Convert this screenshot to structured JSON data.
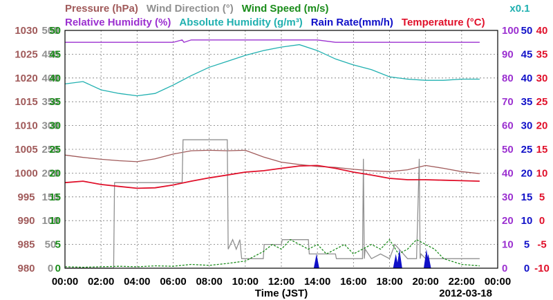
{
  "chart_data": {
    "type": "line",
    "date": "2012-03-18",
    "xlabel": "Time (JST)",
    "x_ticks": [
      "00:00",
      "02:00",
      "04:00",
      "06:00",
      "08:00",
      "10:00",
      "12:00",
      "14:00",
      "16:00",
      "18:00",
      "20:00",
      "22:00",
      "00:00"
    ],
    "xlim": [
      0,
      24
    ],
    "legend": {
      "row1": [
        {
          "text": "Pressure (hPa)",
          "color": "#a05a5a"
        },
        {
          "text": "Wind Direction (°)",
          "color": "#909090"
        },
        {
          "text": "Wind Speed (m/s)",
          "color": "#1a8c1a"
        }
      ],
      "row2": [
        {
          "text": "Relative Humidity (%)",
          "color": "#9b30d0"
        },
        {
          "text": "Absolute Humidity (g/m³)",
          "color": "#20b0b0"
        },
        {
          "text": "Rain Rate(mm/h)",
          "color": "#1010c8"
        },
        {
          "text": "Temperature (°C)",
          "color": "#e0102a"
        }
      ],
      "scale_note": {
        "text": "x0.1",
        "color": "#20b0b0"
      }
    },
    "axes": [
      {
        "name": "pressure",
        "color": "#a05a5a",
        "ylim": [
          980,
          1030
        ],
        "ticks": [
          "980",
          "985",
          "990",
          "995",
          "1000",
          "1005",
          "1010",
          "1015",
          "1020",
          "1025",
          "1030"
        ]
      },
      {
        "name": "wind_direction",
        "color": "#909090",
        "ylim": [
          0,
          500
        ],
        "ticks": [
          "0",
          "50",
          "100",
          "150",
          "200",
          "250",
          "300",
          "350",
          "400",
          "450",
          "500"
        ]
      },
      {
        "name": "wind_speed",
        "color": "#1a8c1a",
        "ylim": [
          0,
          50
        ],
        "ticks": [
          "0",
          "5",
          "10",
          "15",
          "20",
          "25",
          "30",
          "35",
          "40",
          "45",
          "50"
        ]
      },
      {
        "name": "humidity",
        "color": "#9b30d0",
        "ylim": [
          0,
          100
        ],
        "ticks": [
          "0",
          "10",
          "20",
          "30",
          "40",
          "50",
          "60",
          "70",
          "80",
          "90",
          "100"
        ]
      },
      {
        "name": "rain_rate",
        "color": "#1010c8",
        "ylim": [
          0,
          50
        ],
        "ticks": [
          "0",
          "5",
          "10",
          "15",
          "20",
          "25",
          "30",
          "35",
          "40",
          "45",
          "50"
        ]
      },
      {
        "name": "temperature",
        "color": "#e0102a",
        "ylim": [
          -10,
          40
        ],
        "ticks": [
          "-10",
          "-5",
          "0",
          "5",
          "10",
          "15",
          "20",
          "25",
          "30",
          "35",
          "40"
        ]
      }
    ],
    "series": [
      {
        "name": "Pressure (hPa)",
        "color": "#a05a5a",
        "axis": "pressure",
        "x": [
          0,
          1,
          2,
          3,
          4,
          5,
          6,
          7,
          8,
          9,
          10,
          11,
          12,
          13,
          14,
          15,
          16,
          17,
          18,
          19,
          20,
          21,
          22,
          23
        ],
        "y": [
          1003.8,
          1003.3,
          1002.9,
          1002.6,
          1002.4,
          1003.0,
          1004.0,
          1004.7,
          1004.8,
          1004.7,
          1004.8,
          1003.4,
          1002.3,
          1001.8,
          1001.4,
          1001.2,
          1000.8,
          1000.5,
          1000.3,
          1000.7,
          1001.6,
          1001.0,
          1000.3,
          999.9
        ]
      },
      {
        "name": "Wind Direction (°)",
        "color": "#909090",
        "axis": "wind_direction",
        "x": [
          0,
          2.7,
          2.75,
          6.5,
          6.55,
          9.0,
          9.05,
          9.3,
          9.5,
          9.7,
          9.8,
          10.0,
          11.0,
          11.05,
          12.0,
          12.05,
          13.5,
          13.55,
          15.0,
          15.05,
          16.5,
          16.55,
          16.6,
          16.65,
          17.0,
          17.5,
          18.0,
          18.3,
          19.0,
          19.5,
          19.65,
          19.7,
          19.75,
          20.0,
          21.0,
          23.0
        ],
        "y": [
          0,
          0,
          180,
          180,
          270,
          270,
          40,
          60,
          40,
          60,
          20,
          20,
          20,
          50,
          50,
          60,
          60,
          30,
          30,
          20,
          20,
          230,
          20,
          40,
          20,
          30,
          20,
          50,
          20,
          20,
          230,
          20,
          30,
          20,
          20,
          20
        ]
      },
      {
        "name": "Wind Speed (m/s)",
        "color": "#1a8c1a",
        "axis": "wind_speed",
        "x": [
          0,
          1,
          2,
          3,
          4,
          5,
          6,
          7,
          8,
          9,
          10,
          11,
          11.5,
          12,
          12.5,
          13,
          13.5,
          14,
          14.5,
          15,
          15.5,
          16,
          16.5,
          17,
          17.5,
          18,
          18.5,
          19,
          19.5,
          20,
          20.5,
          21,
          22,
          23
        ],
        "y": [
          0.3,
          0.2,
          0.3,
          0.4,
          0.3,
          0.5,
          0.4,
          0.8,
          0.6,
          1.0,
          1.5,
          3.5,
          5,
          4,
          6,
          5,
          4,
          5,
          3,
          4,
          5,
          3,
          4,
          5,
          4,
          6,
          3,
          4,
          6,
          5,
          4,
          2,
          0.8,
          0.5
        ]
      },
      {
        "name": "Relative Humidity (%)",
        "color": "#9b30d0",
        "axis": "humidity",
        "x": [
          0,
          3,
          5,
          6,
          6.5,
          6.6,
          7,
          12,
          14,
          15,
          16,
          18,
          19,
          20,
          23
        ],
        "y": [
          95,
          95,
          95,
          95,
          96,
          95,
          96,
          96,
          96,
          95,
          95,
          95,
          95,
          95,
          95
        ]
      },
      {
        "name": "Absolute Humidity (g/m³) x0.1",
        "color": "#20b0b0",
        "axis": "humidity",
        "x": [
          0,
          1,
          2,
          3,
          4,
          5,
          6,
          7,
          8,
          9,
          10,
          11,
          12,
          13,
          14,
          15,
          16,
          17,
          18,
          19,
          20,
          21,
          22,
          23
        ],
        "y": [
          77.5,
          78.5,
          75,
          73.5,
          72.5,
          73.5,
          77,
          81,
          84.5,
          87,
          89.5,
          91.5,
          93,
          94,
          91.5,
          88,
          85.5,
          83.5,
          80.5,
          79.5,
          79,
          79,
          79.5,
          79.5
        ]
      },
      {
        "name": "Rain Rate(mm/h)",
        "color": "#1010c8",
        "axis": "rain_rate",
        "x": [
          13.9,
          13.95,
          14.0,
          18.3,
          18.35,
          18.4,
          18.5,
          18.55,
          18.6,
          20.0,
          20.05,
          20.1,
          20.15,
          20.2
        ],
        "y": [
          0,
          3,
          0,
          0,
          3,
          0,
          0,
          4,
          0,
          0,
          4,
          0,
          3,
          0
        ]
      },
      {
        "name": "Temperature (°C)",
        "color": "#e0102a",
        "axis": "temperature",
        "x": [
          0,
          1,
          2,
          3,
          4,
          5,
          6,
          7,
          8,
          9,
          10,
          11,
          12,
          13,
          14,
          15,
          16,
          17,
          18,
          19,
          20,
          21,
          22,
          23
        ],
        "y": [
          8.0,
          8.3,
          7.6,
          7.2,
          6.8,
          6.9,
          7.5,
          8.3,
          9.0,
          9.6,
          10.2,
          10.5,
          11.0,
          11.5,
          11.6,
          11.0,
          10.2,
          9.6,
          8.9,
          8.6,
          8.6,
          8.5,
          8.4,
          8.3
        ]
      }
    ]
  }
}
